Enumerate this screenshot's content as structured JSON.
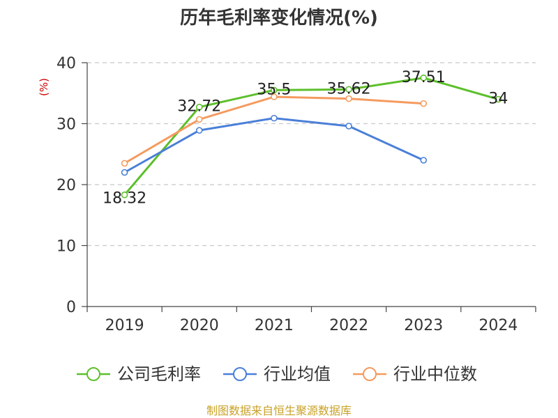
{
  "chart_data": {
    "type": "line",
    "title": "历年毛利率变化情况(%)",
    "ylabel": "(%)",
    "xlabel": "",
    "ylim": [
      0,
      40
    ],
    "yticks": [
      0,
      10,
      20,
      30,
      40
    ],
    "categories": [
      "2019",
      "2020",
      "2021",
      "2022",
      "2023",
      "2024"
    ],
    "grid": "horizontal-dashed",
    "legend_position": "bottom",
    "series": [
      {
        "name": "公司毛利率",
        "color": "#5cbf2a",
        "values": [
          18.32,
          32.72,
          35.5,
          35.62,
          37.51,
          34
        ],
        "labels": [
          "18.32",
          "32.72",
          "35.5",
          "35.62",
          "37.51",
          "34"
        ]
      },
      {
        "name": "行业均值",
        "color": "#4a7fd8",
        "values": [
          22.0,
          28.9,
          30.9,
          29.6,
          24.0,
          null
        ]
      },
      {
        "name": "行业中位数",
        "color": "#f59a5e",
        "values": [
          23.5,
          30.7,
          34.4,
          34.1,
          33.3,
          null
        ]
      }
    ]
  },
  "source_text": "制图数据来自恒生聚源数据库"
}
